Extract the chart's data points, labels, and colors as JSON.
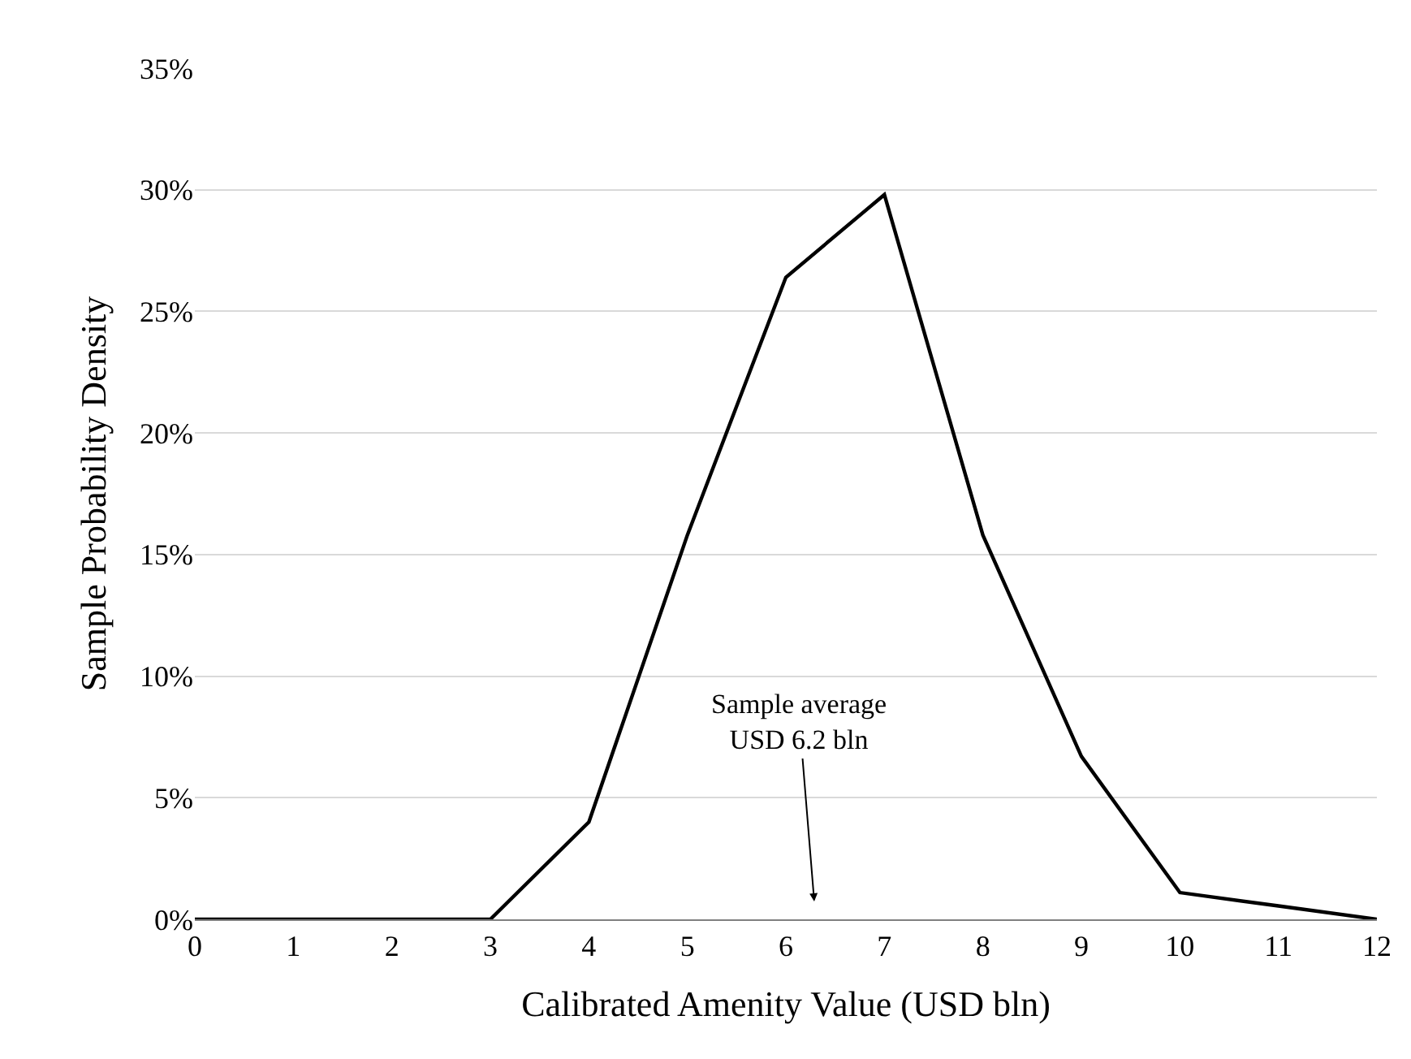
{
  "chart_data": {
    "type": "line",
    "xlabel": "Calibrated Amenity Value (USD bln)",
    "ylabel": "Sample Probability Density",
    "x": [
      0,
      1,
      2,
      3,
      4,
      5,
      6,
      7,
      8,
      9,
      10,
      11,
      12
    ],
    "series": [
      {
        "color": "#000000",
        "values": [
          0,
          0,
          0,
          0,
          4,
          15.8,
          26.4,
          29.8,
          15.8,
          6.7,
          1.1,
          0.55,
          0
        ]
      }
    ],
    "xlim": [
      0,
      12
    ],
    "xticks": [
      0,
      1,
      2,
      3,
      4,
      5,
      6,
      7,
      8,
      9,
      10,
      11,
      12
    ],
    "ylim": [
      0,
      35
    ],
    "yticks": [
      {
        "value": 0,
        "label": "0%"
      },
      {
        "value": 5,
        "label": "5%"
      },
      {
        "value": 10,
        "label": "10%"
      },
      {
        "value": 15,
        "label": "15%"
      },
      {
        "value": 20,
        "label": "20%"
      },
      {
        "value": 25,
        "label": "25%"
      },
      {
        "value": 30,
        "label": "30%"
      },
      {
        "value": 35,
        "label": "35%"
      }
    ],
    "grid": "y",
    "marker": "none",
    "line_style": "solid",
    "annotations": [
      "Sample average\nUSD 6.2 bln"
    ]
  }
}
